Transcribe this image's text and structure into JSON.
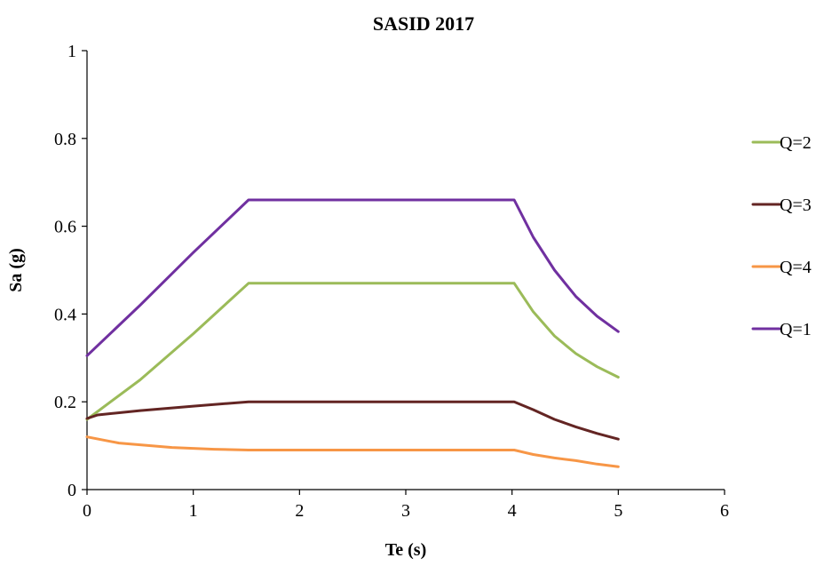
{
  "chart_data": {
    "type": "line",
    "title": "SASID 2017",
    "xlabel": "Te (s)",
    "ylabel": "Sa (g)",
    "xlim": [
      0,
      6
    ],
    "ylim": [
      0,
      1
    ],
    "xticks": [
      "0",
      "1",
      "2",
      "3",
      "4",
      "5",
      "6"
    ],
    "yticks": [
      "0",
      "0.2",
      "0.4",
      "0.6",
      "0.8",
      "1"
    ],
    "grid": false,
    "legend_position": "right",
    "series": [
      {
        "name": "Q=2",
        "color": "#9bbb59",
        "x": [
          0,
          0.5,
          1.0,
          1.52,
          4.02,
          4.2,
          4.4,
          4.6,
          4.8,
          5.0
        ],
        "y": [
          0.16,
          0.25,
          0.355,
          0.47,
          0.47,
          0.405,
          0.35,
          0.31,
          0.28,
          0.256
        ]
      },
      {
        "name": "Q=3",
        "color": "#632523",
        "x": [
          0,
          0.1,
          0.5,
          1.0,
          1.52,
          4.02,
          4.2,
          4.4,
          4.6,
          4.8,
          5.0
        ],
        "y": [
          0.162,
          0.17,
          0.18,
          0.19,
          0.2,
          0.2,
          0.182,
          0.16,
          0.143,
          0.128,
          0.115
        ]
      },
      {
        "name": "Q=4",
        "color": "#f79646",
        "x": [
          0,
          0.3,
          0.8,
          1.2,
          1.52,
          4.02,
          4.2,
          4.4,
          4.6,
          4.8,
          5.0
        ],
        "y": [
          0.12,
          0.106,
          0.096,
          0.092,
          0.09,
          0.09,
          0.08,
          0.072,
          0.066,
          0.058,
          0.052
        ]
      },
      {
        "name": "Q=1",
        "color": "#7030a0",
        "x": [
          0,
          0.5,
          1.0,
          1.52,
          4.02,
          4.2,
          4.4,
          4.6,
          4.8,
          5.0
        ],
        "y": [
          0.305,
          0.42,
          0.54,
          0.66,
          0.66,
          0.575,
          0.5,
          0.44,
          0.395,
          0.36
        ]
      }
    ]
  }
}
